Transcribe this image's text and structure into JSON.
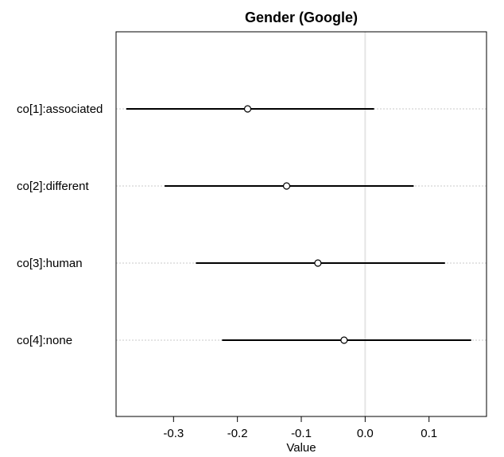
{
  "chart_data": {
    "type": "scatter",
    "title": "Gender (Google)",
    "xlabel": "Value",
    "ylabel": "",
    "xlim": [
      -0.39,
      0.19
    ],
    "x_ticks": [
      -0.3,
      -0.2,
      -0.1,
      0.0,
      0.1
    ],
    "x_tick_labels": [
      "-0.3",
      "-0.2",
      "-0.1",
      "0.0",
      "0.1"
    ],
    "reference_line_x": 0.0,
    "grid": "horizontal dotted at each category",
    "categories": [
      "co[1]:associated",
      "co[2]:different",
      "co[3]:human",
      "co[4]:none"
    ],
    "points": [
      {
        "label": "co[1]:associated",
        "estimate": -0.184,
        "lower": -0.374,
        "upper": 0.014
      },
      {
        "label": "co[2]:different",
        "estimate": -0.123,
        "lower": -0.314,
        "upper": 0.076
      },
      {
        "label": "co[3]:human",
        "estimate": -0.074,
        "lower": -0.265,
        "upper": 0.125
      },
      {
        "label": "co[4]:none",
        "estimate": -0.033,
        "lower": -0.224,
        "upper": 0.166
      }
    ]
  }
}
